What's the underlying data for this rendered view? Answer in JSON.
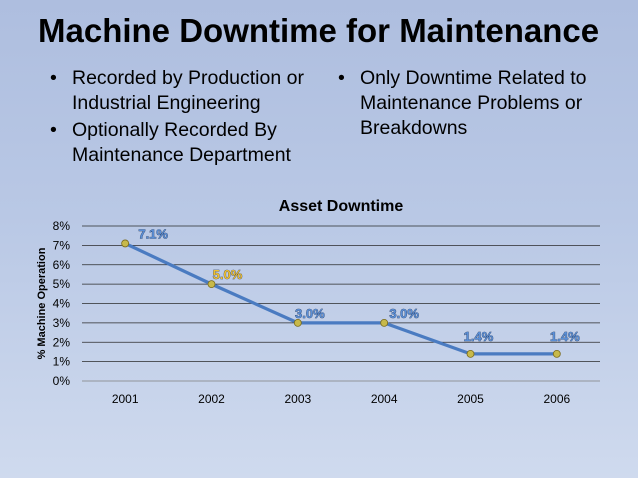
{
  "slide": {
    "title": "Machine Downtime for Maintenance",
    "left_bullets": [
      "Recorded by Production or Industrial Engineering",
      "Optionally Recorded By Maintenance Department"
    ],
    "right_bullets": [
      "Only Downtime Related to Maintenance Problems or Breakdowns"
    ],
    "bullet_glyph": "•"
  },
  "chart_data": {
    "type": "line",
    "title": "Asset Downtime",
    "xlabel": "",
    "ylabel": "% Machine Operation",
    "categories": [
      "2001",
      "2002",
      "2003",
      "2004",
      "2005",
      "2006"
    ],
    "series": [
      {
        "values": [
          7.1,
          5.0,
          3.0,
          3.0,
          1.4,
          1.4
        ]
      }
    ],
    "data_labels": [
      "7.1%",
      "5.0%",
      "3.0%",
      "3.0%",
      "1.4%",
      "1.4%"
    ],
    "ylim": [
      0,
      8
    ],
    "yticks": [
      "0%",
      "1%",
      "2%",
      "3%",
      "4%",
      "5%",
      "6%",
      "7%",
      "8%"
    ],
    "grid": true,
    "legend": "none",
    "colors": {
      "line": "#4a7bc1",
      "marker_fill": "#c7b94a",
      "marker_stroke": "#7a6a1a",
      "gridline": "#2b2b2b",
      "label_default": "#5b8fd6",
      "label_highlight": "#f0c030"
    },
    "label_colors": [
      "#5b8fd6",
      "#f0c030",
      "#5b8fd6",
      "#5b8fd6",
      "#5b8fd6",
      "#5b8fd6"
    ]
  }
}
